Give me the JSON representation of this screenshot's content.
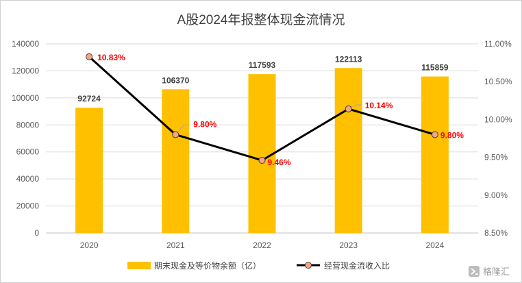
{
  "chart_data": {
    "type": "bar",
    "title": "A股2024年报整体现金流情况",
    "categories": [
      "2020",
      "2021",
      "2022",
      "2023",
      "2024"
    ],
    "series": [
      {
        "name": "期末现金及等价物余额（亿）",
        "type": "bar",
        "axis": "left",
        "color": "#ffc000",
        "values": [
          92724,
          106370,
          117593,
          122113,
          115859
        ],
        "labels": [
          "92724",
          "106370",
          "117593",
          "122113",
          "115859"
        ]
      },
      {
        "name": "经营现金流收入比",
        "type": "line",
        "axis": "right",
        "color": "#000000",
        "marker_color": "#f4a582",
        "values": [
          10.83,
          9.8,
          9.46,
          10.14,
          9.8
        ],
        "labels": [
          "10.83%",
          "9.80%",
          "9.46%",
          "10.14%",
          "9.80%"
        ]
      }
    ],
    "y_left": {
      "ylim": [
        0,
        140000
      ],
      "ticks": [
        0,
        20000,
        40000,
        60000,
        80000,
        100000,
        120000,
        140000
      ],
      "tick_labels": [
        "0",
        "20000",
        "40000",
        "60000",
        "80000",
        "100000",
        "120000",
        "140000"
      ]
    },
    "y_right": {
      "ylim": [
        8.5,
        11.0
      ],
      "ticks": [
        8.5,
        9.0,
        9.5,
        10.0,
        10.5,
        11.0
      ],
      "tick_labels": [
        "8.50%",
        "9.00%",
        "9.50%",
        "10.00%",
        "10.50%",
        "11.00%"
      ]
    },
    "grid": true,
    "legend": "bottom"
  },
  "watermark": {
    "text": "格隆汇",
    "icon": "gelonghui-logo-icon"
  }
}
